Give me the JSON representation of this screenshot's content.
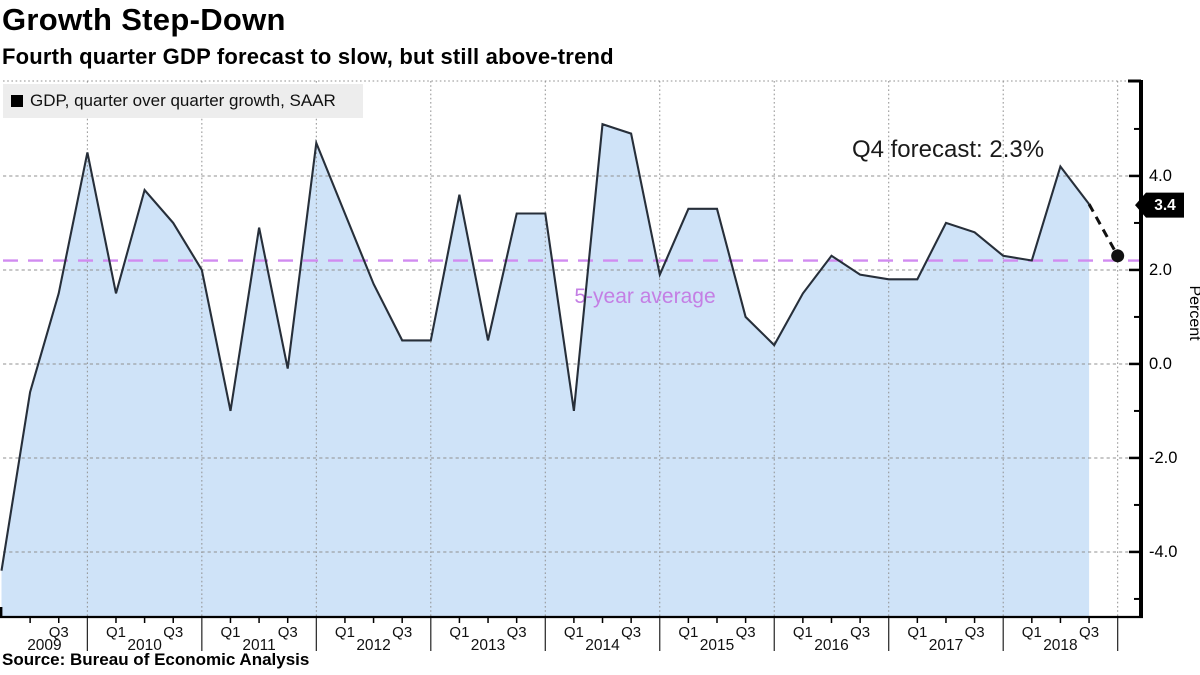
{
  "header": {
    "title": "Growth Step-Down",
    "subtitle": "Fourth quarter GDP forecast to slow, but still above-trend"
  },
  "legend": {
    "label": "GDP, quarter over quarter growth, SAAR"
  },
  "footer": {
    "source": "Source: Bureau of Economic Analysis"
  },
  "axes": {
    "y_unit_label": "Percent",
    "y_major_ticks": [
      {
        "value": 4.0,
        "label": "4.0"
      },
      {
        "value": 2.0,
        "label": "2.0"
      },
      {
        "value": 0.0,
        "label": "0.0"
      },
      {
        "value": -2.0,
        "label": "-2.0"
      },
      {
        "value": -4.0,
        "label": "-4.0"
      }
    ],
    "y_minor_tick_values": [
      5.0,
      3.0,
      1.0,
      -1.0,
      -3.0,
      -5.0
    ],
    "x_axis": {
      "q1_label": "Q1",
      "q3_label": "Q3",
      "years": [
        {
          "label": "2009",
          "q1": false,
          "q3": true
        },
        {
          "label": "2010",
          "q1": true,
          "q3": true
        },
        {
          "label": "2011",
          "q1": true,
          "q3": true
        },
        {
          "label": "2012",
          "q1": true,
          "q3": true
        },
        {
          "label": "2013",
          "q1": true,
          "q3": true
        },
        {
          "label": "2014",
          "q1": true,
          "q3": true
        },
        {
          "label": "2015",
          "q1": true,
          "q3": true
        },
        {
          "label": "2016",
          "q1": true,
          "q3": true
        },
        {
          "label": "2017",
          "q1": true,
          "q3": true
        },
        {
          "label": "2018",
          "q1": true,
          "q3": true
        }
      ]
    }
  },
  "chart_data": {
    "type": "area",
    "title": "GDP, quarter over quarter growth, SAAR",
    "xlabel": "",
    "ylabel": "Percent",
    "ylim": [
      -5.4,
      6.0
    ],
    "grid": true,
    "legend_position": "top-left",
    "categories": [
      "2009 Q1",
      "2009 Q2",
      "2009 Q3",
      "2009 Q4",
      "2010 Q1",
      "2010 Q2",
      "2010 Q3",
      "2010 Q4",
      "2011 Q1",
      "2011 Q2",
      "2011 Q3",
      "2011 Q4",
      "2012 Q1",
      "2012 Q2",
      "2012 Q3",
      "2012 Q4",
      "2013 Q1",
      "2013 Q2",
      "2013 Q3",
      "2013 Q4",
      "2014 Q1",
      "2014 Q2",
      "2014 Q3",
      "2014 Q4",
      "2015 Q1",
      "2015 Q2",
      "2015 Q3",
      "2015 Q4",
      "2016 Q1",
      "2016 Q2",
      "2016 Q3",
      "2016 Q4",
      "2017 Q1",
      "2017 Q2",
      "2017 Q3",
      "2017 Q4",
      "2018 Q1",
      "2018 Q2",
      "2018 Q3"
    ],
    "values": [
      -4.4,
      -0.6,
      1.5,
      4.5,
      1.5,
      3.7,
      3.0,
      2.0,
      -1.0,
      2.9,
      -0.1,
      4.7,
      3.2,
      1.7,
      0.5,
      0.5,
      3.6,
      0.5,
      3.2,
      3.2,
      -1.0,
      5.1,
      4.9,
      1.9,
      3.3,
      3.3,
      1.0,
      0.4,
      1.5,
      2.3,
      1.9,
      1.8,
      1.8,
      3.0,
      2.8,
      2.3,
      2.2,
      4.2,
      3.4
    ],
    "forecast_point": {
      "category": "2018 Q4",
      "value": 2.3
    },
    "forecast_annotation": "Q4 forecast: 2.3%",
    "last_actual": {
      "category": "2018 Q3",
      "value": 3.4,
      "badge_label": "3.4"
    },
    "five_year_average": {
      "value": 2.2,
      "label": "5-year average"
    },
    "colors": {
      "line": "#272f3a",
      "fill": "#cfe3f8",
      "average_line": "#d18bf0",
      "average_text": "#c47fe4",
      "grid": "#909090",
      "forecast": "#111111",
      "badge_bg": "#000000",
      "badge_text": "#ffffff",
      "axis": "#000000"
    }
  }
}
